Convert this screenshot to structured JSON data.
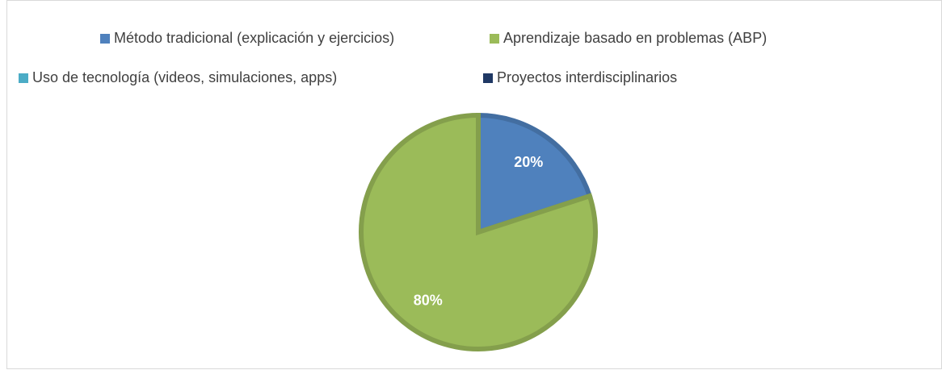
{
  "chart_data": {
    "type": "pie",
    "categories": [
      "Método tradicional (explicación y ejercicios)",
      "Aprendizaje basado en problemas (ABP)",
      "Uso de tecnología (videos, simulaciones, apps)",
      "Proyectos interdisciplinarios"
    ],
    "values": [
      20,
      80,
      0,
      0
    ],
    "value_labels": [
      "20%",
      "80%",
      null,
      null
    ],
    "colors": [
      "#4f81bd",
      "#9bbb59",
      "#4bacc6",
      "#1f3864"
    ],
    "legend": "top"
  }
}
